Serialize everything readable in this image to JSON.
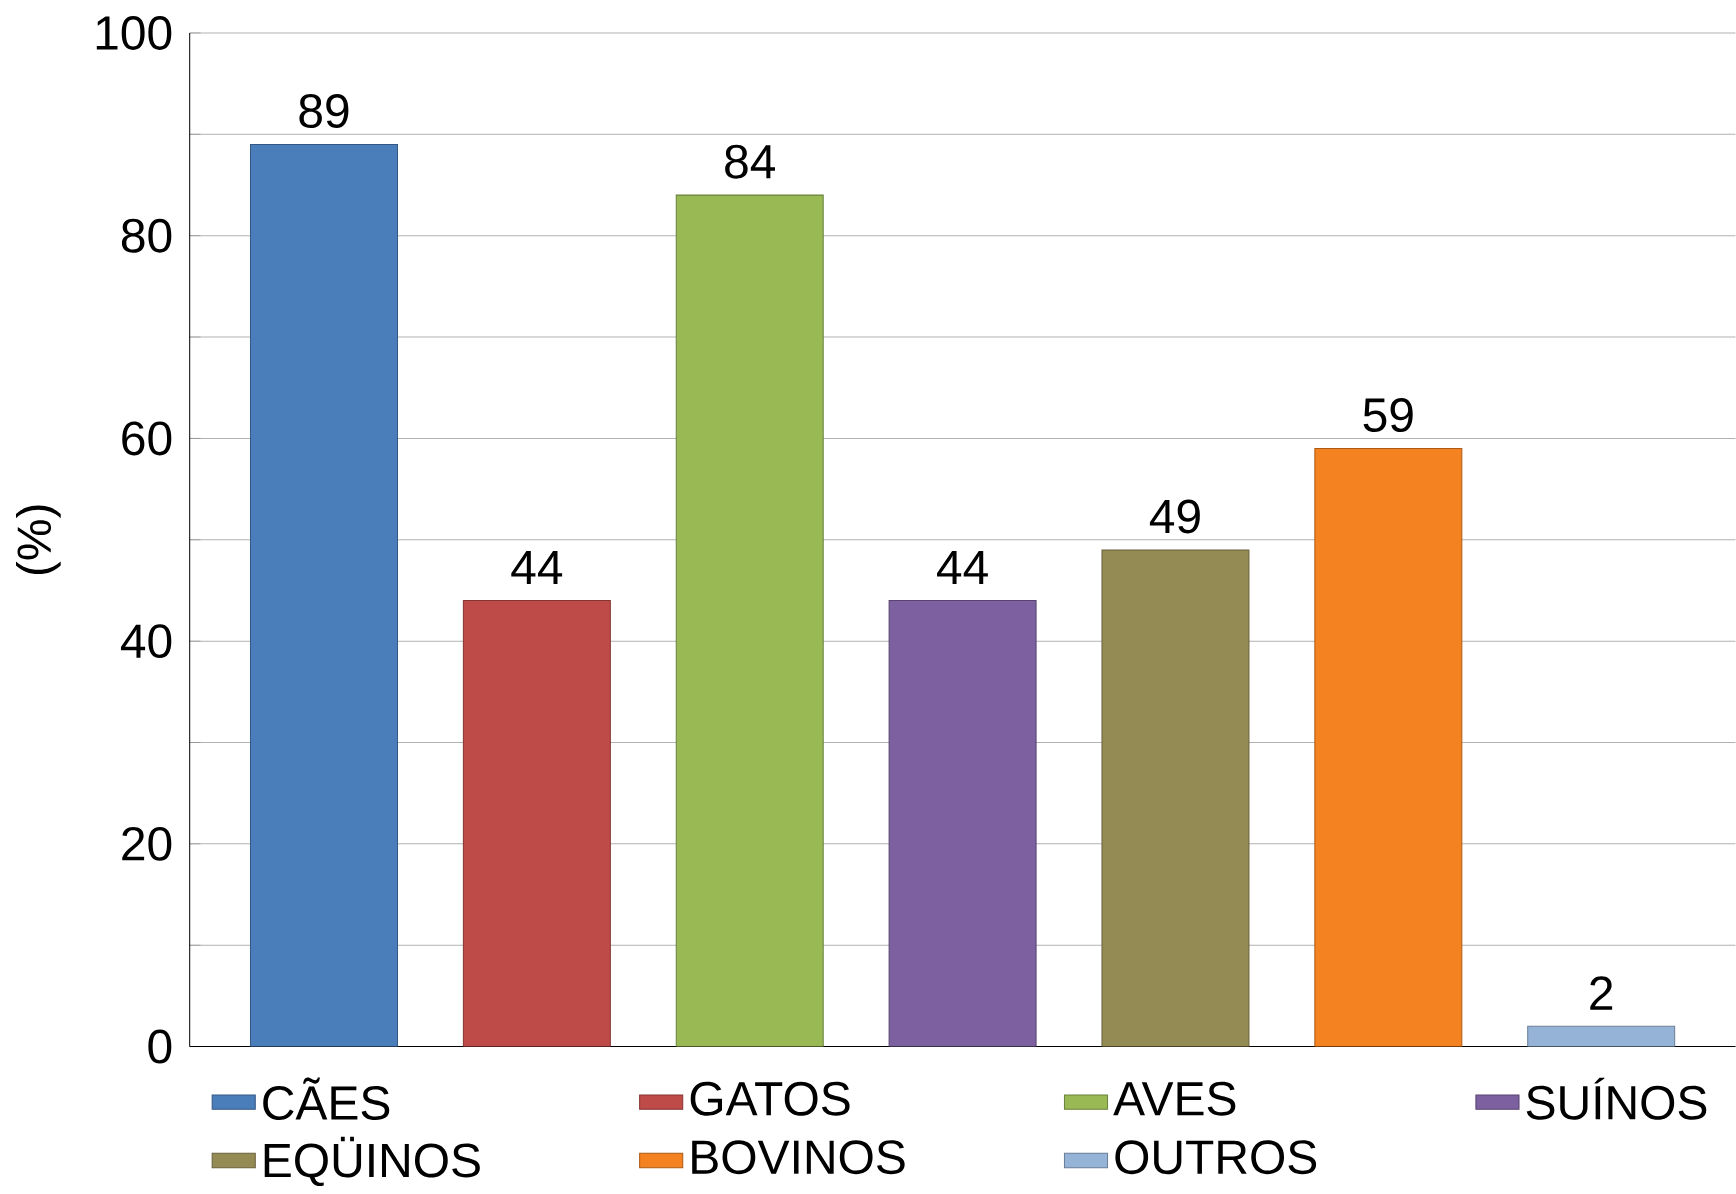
{
  "chart_data": {
    "type": "bar",
    "ylabel": "(%)",
    "categories": [
      null
    ],
    "series": [
      {
        "name": "CÃES",
        "color": "#4a7ebb",
        "values": [
          89
        ]
      },
      {
        "name": "GATOS",
        "color": "#be4b48",
        "values": [
          44
        ]
      },
      {
        "name": "AVES",
        "color": "#98b954",
        "values": [
          84
        ]
      },
      {
        "name": "SUÍNOS",
        "color": "#7d60a0",
        "values": [
          44
        ]
      },
      {
        "name": "EQÜINOS",
        "color": "#948a54",
        "values": [
          49
        ]
      },
      {
        "name": "BOVINOS",
        "color": "#f58220",
        "values": [
          59
        ]
      },
      {
        "name": "OUTROS",
        "color": "#95b3d7",
        "values": [
          2
        ]
      }
    ],
    "ylim": [
      0,
      100
    ],
    "yticks": [
      0,
      {
        "value": 10,
        "label": null
      },
      20,
      {
        "value": 30,
        "label": null
      },
      40,
      {
        "value": 50,
        "label": null
      },
      60,
      {
        "value": 70,
        "label": null
      },
      80,
      {
        "value": 90,
        "label": null
      },
      100
    ],
    "grid": "y",
    "legend": "bottom",
    "tick_labels": "y",
    "data_labels": true
  }
}
